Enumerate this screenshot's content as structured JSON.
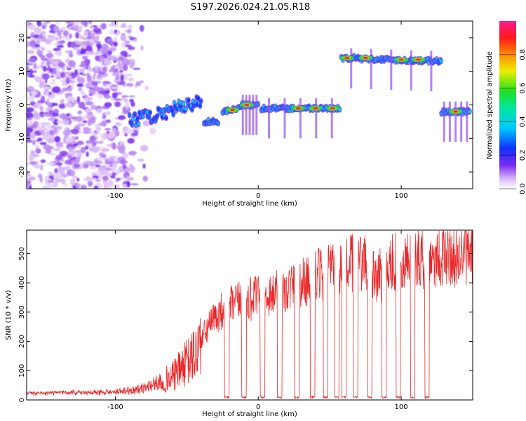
{
  "title": "S197.2026.024.21.05.R18",
  "chart_data": [
    {
      "type": "heatmap",
      "xlabel": "Height of straight line (km)",
      "ylabel": "Frequency (Hz)",
      "xlim": [
        -162,
        150
      ],
      "ylim": [
        -25,
        25
      ],
      "xticks": [
        -100,
        0,
        100
      ],
      "yticks": [
        -20,
        -10,
        0,
        10,
        20
      ],
      "colorbar": {
        "label": "Normalized spectral amplitude",
        "range": [
          0,
          1
        ],
        "ticks": [
          0.0,
          0.2,
          0.4,
          0.6,
          0.8
        ],
        "tick_labels": [
          "0.0",
          "0.2",
          "0.4",
          "0.6",
          "0.8"
        ]
      },
      "ridge": [
        {
          "x0": -90,
          "x1": -40,
          "freq0": -5,
          "freq1": 1
        },
        {
          "x0": -38,
          "x1": -28,
          "freq0": -5,
          "freq1": -5
        },
        {
          "x0": -25,
          "x1": -12,
          "freq0": -2,
          "freq1": -1
        },
        {
          "x0": -12,
          "x1": 0,
          "freq0": 0,
          "freq1": 0
        },
        {
          "x0": 2,
          "x1": 57,
          "freq0": -1,
          "freq1": -1
        },
        {
          "x0": 58,
          "x1": 128,
          "freq0": 14,
          "freq1": 13
        },
        {
          "x0": 128,
          "x1": 148,
          "freq0": -2,
          "freq1": -2
        }
      ],
      "peaks": [
        {
          "x": -8,
          "freq": 0
        },
        {
          "x": -18,
          "freq": -1.5
        },
        {
          "x": 28,
          "freq": -1
        },
        {
          "x": 40,
          "freq": -1
        },
        {
          "x": 52,
          "freq": -1
        },
        {
          "x": 62,
          "freq": 14
        },
        {
          "x": 75,
          "freq": 14
        },
        {
          "x": 100,
          "freq": 13.5
        },
        {
          "x": 112,
          "freq": 13.5
        },
        {
          "x": 138,
          "freq": -2
        }
      ]
    },
    {
      "type": "line",
      "xlabel": "Height of straight line (km)",
      "ylabel": "SNR (10 * v/v)",
      "xlim": [
        -162,
        150
      ],
      "ylim": [
        0,
        580
      ],
      "xticks": [
        -100,
        0,
        100
      ],
      "yticks": [
        0,
        100,
        200,
        300,
        400,
        500
      ],
      "series": [
        {
          "name": "SNR",
          "color": "#e8282a",
          "envelope": [
            {
              "x": -162,
              "y": 20
            },
            {
              "x": -100,
              "y": 25
            },
            {
              "x": -80,
              "y": 40
            },
            {
              "x": -60,
              "y": 80
            },
            {
              "x": -45,
              "y": 150
            },
            {
              "x": -35,
              "y": 250
            },
            {
              "x": -25,
              "y": 310
            },
            {
              "x": -10,
              "y": 340
            },
            {
              "x": 0,
              "y": 350
            },
            {
              "x": 20,
              "y": 380
            },
            {
              "x": 40,
              "y": 420
            },
            {
              "x": 60,
              "y": 470
            },
            {
              "x": 75,
              "y": 460
            },
            {
              "x": 82,
              "y": 410
            },
            {
              "x": 95,
              "y": 470
            },
            {
              "x": 110,
              "y": 480
            },
            {
              "x": 125,
              "y": 490
            },
            {
              "x": 150,
              "y": 495
            }
          ],
          "dropouts_x": [
            -22,
            -10,
            3,
            15,
            27,
            38,
            47,
            55,
            60,
            68,
            78,
            88,
            98,
            108,
            118
          ]
        }
      ]
    }
  ]
}
